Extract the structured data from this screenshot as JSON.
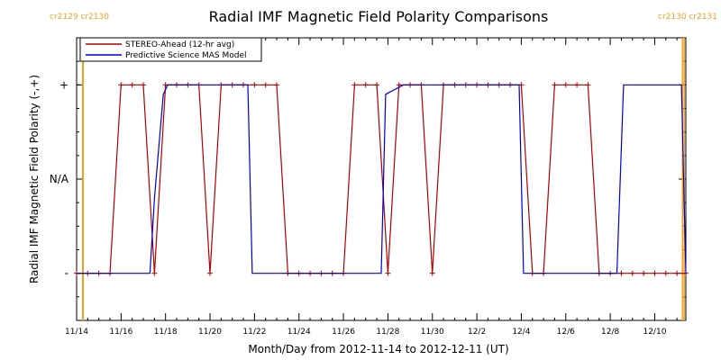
{
  "chart_data": {
    "type": "line",
    "title": "Radial IMF Magnetic Field Polarity Comparisons",
    "xlabel": "Month/Day from 2012-11-14 to 2012-12-11 (UT)",
    "ylabel": "Radial IMF Magnetic Field Polarity (-,+)",
    "xlim": [
      0,
      27.4
    ],
    "ylim": [
      -1.5,
      1.5
    ],
    "x_ticks": [
      {
        "x": 0,
        "label": "11/14"
      },
      {
        "x": 2,
        "label": "11/16"
      },
      {
        "x": 4,
        "label": "11/18"
      },
      {
        "x": 6,
        "label": "11/20"
      },
      {
        "x": 8,
        "label": "11/22"
      },
      {
        "x": 10,
        "label": "11/24"
      },
      {
        "x": 12,
        "label": "11/26"
      },
      {
        "x": 14,
        "label": "11/28"
      },
      {
        "x": 16,
        "label": "11/30"
      },
      {
        "x": 18,
        "label": "12/2"
      },
      {
        "x": 20,
        "label": "12/4"
      },
      {
        "x": 22,
        "label": "12/6"
      },
      {
        "x": 24,
        "label": "12/8"
      },
      {
        "x": 26,
        "label": "12/10"
      }
    ],
    "y_ticks": [
      {
        "y": 1,
        "label": "+"
      },
      {
        "y": 0,
        "label": "N/A"
      },
      {
        "y": -1,
        "label": "-"
      }
    ],
    "carrington": [
      {
        "x": 0,
        "labels": [
          "cr2129",
          "cr2130"
        ],
        "side": "left"
      },
      {
        "x": 27.3,
        "labels": [
          "cr2130",
          "cr2131"
        ],
        "side": "right"
      }
    ],
    "legend": {
      "position": "top-left"
    },
    "series": [
      {
        "name": "STEREO-Ahead (12-hr avg)",
        "color": "#b00000",
        "marker": "plus",
        "x": [
          0,
          0.5,
          1,
          1.5,
          2,
          2.5,
          3,
          3.5,
          4,
          4.5,
          5,
          5.5,
          6,
          6.5,
          7,
          7.5,
          8,
          8.5,
          9,
          9.5,
          10,
          10.5,
          11,
          11.5,
          12,
          12.5,
          13,
          13.5,
          14,
          14.5,
          15,
          15.5,
          16,
          16.5,
          17,
          17.5,
          18,
          18.5,
          19,
          19.5,
          20,
          20.5,
          21,
          21.5,
          22,
          22.5,
          23,
          23.5,
          24,
          24.5,
          25,
          25.5,
          26,
          26.5,
          27,
          27.4
        ],
        "y": [
          -1,
          -1,
          -1,
          -1,
          1,
          1,
          1,
          -1,
          1,
          1,
          1,
          1,
          -1,
          1,
          1,
          1,
          1,
          1,
          1,
          -1,
          -1,
          -1,
          -1,
          -1,
          -1,
          1,
          1,
          1,
          -1,
          1,
          1,
          1,
          -1,
          1,
          1,
          1,
          1,
          1,
          1,
          1,
          1,
          -1,
          -1,
          1,
          1,
          1,
          1,
          -1,
          -1,
          -1,
          -1,
          -1,
          -1,
          -1,
          -1,
          -1
        ]
      },
      {
        "name": "Predictive Science MAS Model",
        "color": "#0000cc",
        "marker": "none",
        "x": [
          0,
          3.3,
          3.5,
          3.9,
          4.1,
          7.7,
          7.9,
          13.7,
          13.9,
          14.7,
          14.9,
          19.9,
          20.1,
          24.3,
          24.6,
          27.2,
          27.4
        ],
        "y": [
          -1,
          -1,
          -0.2,
          0.9,
          1,
          1,
          -1,
          -1,
          0.9,
          1,
          1,
          1,
          -1,
          -1,
          1,
          1,
          -1
        ]
      }
    ]
  }
}
